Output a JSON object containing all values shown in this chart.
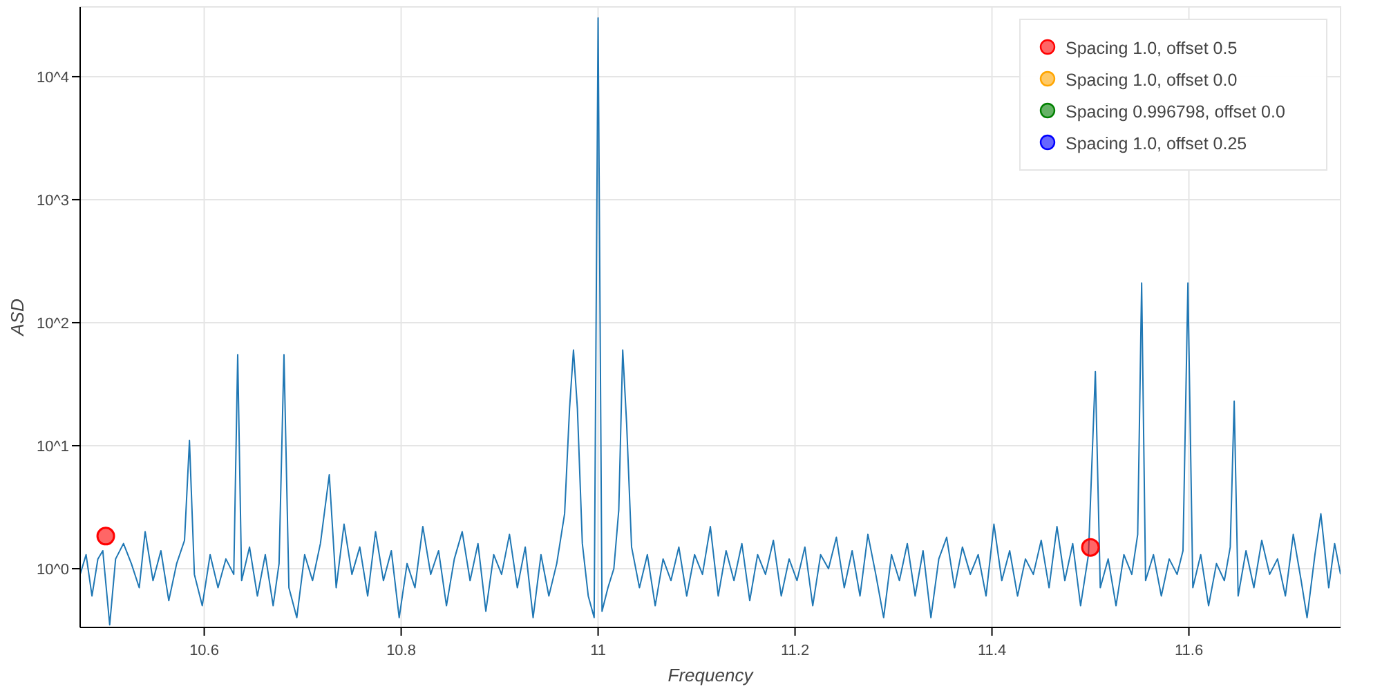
{
  "chart_data": {
    "type": "line",
    "xlabel": "Frequency",
    "ylabel": "ASD",
    "log": "y",
    "grid": true,
    "legend": "top right",
    "xlim": [
      10.474,
      11.754
    ],
    "ylim": [
      0.333,
      36900
    ],
    "xticks": [
      10.6,
      10.8,
      11,
      11.2,
      11.4,
      11.6
    ],
    "yticks": [
      {
        "value": 1,
        "label": "10^0"
      },
      {
        "value": 10,
        "label": "10^1"
      },
      {
        "value": 100,
        "label": "10^2"
      },
      {
        "value": 1000,
        "label": "10^3"
      },
      {
        "value": 10000,
        "label": "10^4"
      }
    ],
    "series": [
      {
        "color": "#1f77b4",
        "x": [
          10.474,
          10.48,
          10.486,
          10.492,
          10.497,
          10.504,
          10.51,
          10.518,
          10.526,
          10.534,
          10.54,
          10.548,
          10.556,
          10.564,
          10.572,
          10.58,
          10.585,
          10.59,
          10.598,
          10.606,
          10.614,
          10.622,
          10.63,
          10.634,
          10.638,
          10.646,
          10.654,
          10.662,
          10.67,
          10.676,
          10.681,
          10.686,
          10.694,
          10.702,
          10.71,
          10.718,
          10.727,
          10.734,
          10.742,
          10.75,
          10.758,
          10.766,
          10.774,
          10.782,
          10.79,
          10.798,
          10.806,
          10.814,
          10.822,
          10.83,
          10.838,
          10.846,
          10.854,
          10.862,
          10.87,
          10.878,
          10.886,
          10.894,
          10.902,
          10.91,
          10.918,
          10.926,
          10.934,
          10.942,
          10.95,
          10.958,
          10.966,
          10.971,
          10.975,
          10.979,
          10.984,
          10.99,
          10.996,
          11.0,
          11.004,
          11.01,
          11.016,
          11.021,
          11.025,
          11.029,
          11.034,
          11.042,
          11.05,
          11.058,
          11.066,
          11.074,
          11.082,
          11.09,
          11.098,
          11.106,
          11.114,
          11.122,
          11.13,
          11.138,
          11.146,
          11.154,
          11.162,
          11.17,
          11.178,
          11.186,
          11.194,
          11.202,
          11.21,
          11.218,
          11.226,
          11.234,
          11.242,
          11.25,
          11.258,
          11.266,
          11.274,
          11.282,
          11.29,
          11.298,
          11.306,
          11.314,
          11.322,
          11.33,
          11.338,
          11.346,
          11.354,
          11.362,
          11.37,
          11.378,
          11.386,
          11.394,
          11.402,
          11.41,
          11.418,
          11.426,
          11.434,
          11.442,
          11.45,
          11.458,
          11.466,
          11.474,
          11.482,
          11.49,
          11.498,
          11.505,
          11.51,
          11.518,
          11.526,
          11.534,
          11.542,
          11.548,
          11.552,
          11.556,
          11.564,
          11.572,
          11.58,
          11.588,
          11.594,
          11.599,
          11.604,
          11.612,
          11.62,
          11.628,
          11.636,
          11.642,
          11.646,
          11.65,
          11.658,
          11.666,
          11.674,
          11.682,
          11.69,
          11.698,
          11.706,
          11.714,
          11.72,
          11.728,
          11.734,
          11.742,
          11.748,
          11.754
        ],
        "values": [
          0.9,
          1.3,
          0.6,
          1.2,
          1.4,
          0.35,
          1.2,
          1.6,
          1.1,
          0.7,
          2.0,
          0.8,
          1.4,
          0.55,
          1.1,
          1.7,
          11,
          0.9,
          0.5,
          1.3,
          0.7,
          1.2,
          0.9,
          55,
          0.8,
          1.5,
          0.6,
          1.3,
          0.5,
          1.1,
          55,
          0.7,
          0.4,
          1.3,
          0.8,
          1.6,
          5.8,
          0.7,
          2.3,
          0.9,
          1.5,
          0.6,
          2.0,
          0.8,
          1.4,
          0.4,
          1.1,
          0.7,
          2.2,
          0.9,
          1.4,
          0.5,
          1.2,
          2.0,
          0.8,
          1.6,
          0.45,
          1.3,
          0.9,
          1.9,
          0.7,
          1.5,
          0.4,
          1.3,
          0.6,
          1.1,
          2.8,
          20,
          60,
          20,
          1.6,
          0.6,
          0.4,
          30000,
          0.45,
          0.7,
          1.0,
          3,
          60,
          15,
          1.5,
          0.7,
          1.3,
          0.5,
          1.2,
          0.8,
          1.5,
          0.6,
          1.3,
          0.9,
          2.2,
          0.6,
          1.4,
          0.8,
          1.6,
          0.55,
          1.3,
          0.9,
          1.7,
          0.6,
          1.2,
          0.8,
          1.5,
          0.5,
          1.3,
          1.0,
          1.8,
          0.7,
          1.4,
          0.6,
          1.9,
          0.9,
          0.4,
          1.3,
          0.8,
          1.6,
          0.6,
          1.4,
          0.4,
          1.2,
          1.8,
          0.7,
          1.5,
          0.9,
          1.3,
          0.6,
          2.3,
          0.8,
          1.4,
          0.6,
          1.2,
          0.9,
          1.7,
          0.7,
          2.2,
          0.8,
          1.6,
          0.5,
          1.3,
          40,
          0.7,
          1.2,
          0.5,
          1.3,
          0.9,
          1.9,
          210,
          0.8,
          1.3,
          0.6,
          1.2,
          0.9,
          1.4,
          210,
          0.7,
          1.3,
          0.5,
          1.1,
          0.8,
          1.5,
          23,
          0.6,
          1.4,
          0.7,
          1.7,
          0.9,
          1.2,
          0.6,
          1.9,
          0.8,
          0.4,
          1.3,
          2.8,
          0.7,
          1.6,
          0.9
        ]
      },
      {
        "type": "scatter",
        "name": "Spacing 1.0, offset 0.5",
        "color": "#ff0000",
        "marker": "circle",
        "x": [
          10.5,
          11.5
        ],
        "values": [
          1.84,
          1.49
        ]
      },
      {
        "type": "scatter",
        "name": "Spacing 1.0, offset 0.0",
        "color": "#ffa500",
        "marker": "circle"
      },
      {
        "type": "scatter",
        "name": "Spacing 0.996798, offset 0.0",
        "color": "#008000",
        "marker": "circle"
      },
      {
        "type": "scatter",
        "name": "Spacing 1.0, offset 0.25",
        "color": "#0000ff",
        "marker": "circle"
      }
    ]
  }
}
